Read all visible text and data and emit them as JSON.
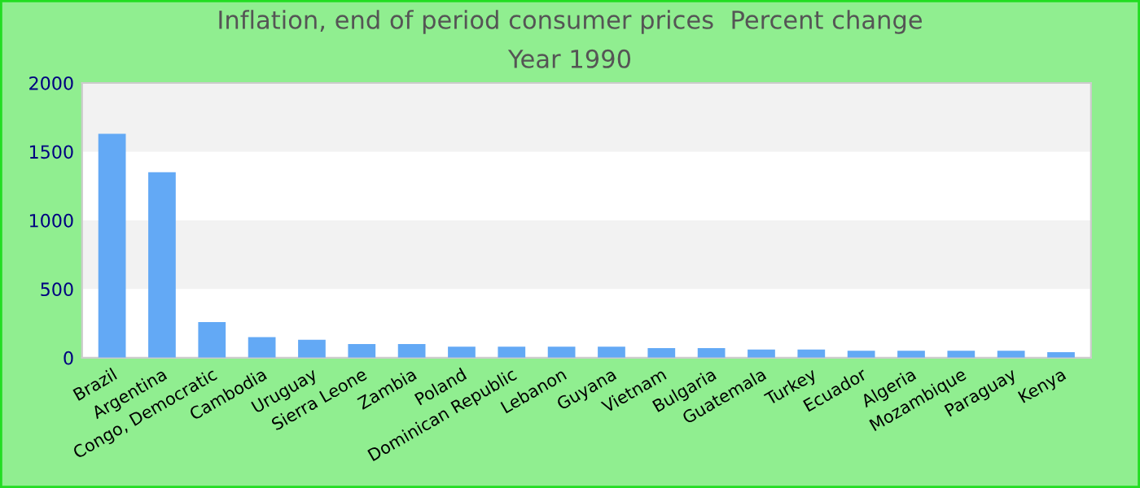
{
  "chart_data": {
    "type": "bar",
    "title": "Inflation, end of period consumer prices  Percent change",
    "subtitle": "Year 1990",
    "categories": [
      "Brazil",
      "Argentina",
      "Congo, Democratic",
      "Cambodia",
      "Uruguay",
      "Sierra Leone",
      "Zambia",
      "Poland",
      "Dominican Republic",
      "Lebanon",
      "Guyana",
      "Vietnam",
      "Bulgaria",
      "Guatemala",
      "Turkey",
      "Ecuador",
      "Algeria",
      "Mozambique",
      "Paraguay",
      "Kenya"
    ],
    "values": [
      1630,
      1350,
      260,
      150,
      130,
      100,
      100,
      80,
      80,
      80,
      80,
      70,
      70,
      60,
      60,
      50,
      50,
      50,
      50,
      40
    ],
    "color": "#63a9f5",
    "ylim": [
      0,
      2000
    ],
    "yticks": [
      0,
      500,
      1000,
      1500,
      2000
    ],
    "bands": [
      {
        "axis": "y",
        "from": 1500,
        "to": 2000,
        "color": "#f2f2f2"
      },
      {
        "axis": "y",
        "from": 500,
        "to": 1000,
        "color": "#f2f2f2"
      }
    ]
  }
}
